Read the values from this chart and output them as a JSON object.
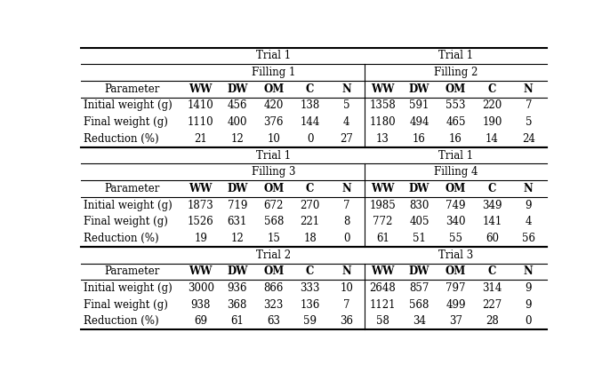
{
  "sections": [
    {
      "trial_left": "Trial 1",
      "trial_right": "Trial 1",
      "filling_left": "Filling 1",
      "filling_right": "Filling 2",
      "has_filling": true,
      "rows": [
        {
          "param": "Parameter",
          "left": [
            "WW",
            "DW",
            "OM",
            "C",
            "N"
          ],
          "right": [
            "WW",
            "DW",
            "OM",
            "C",
            "N"
          ],
          "is_header": true
        },
        {
          "param": "Initial weight (g)",
          "left": [
            "1410",
            "456",
            "420",
            "138",
            "5"
          ],
          "right": [
            "1358",
            "591",
            "553",
            "220",
            "7"
          ]
        },
        {
          "param": "Final weight (g)",
          "left": [
            "1110",
            "400",
            "376",
            "144",
            "4"
          ],
          "right": [
            "1180",
            "494",
            "465",
            "190",
            "5"
          ]
        },
        {
          "param": "Reduction (%)",
          "left": [
            "21",
            "12",
            "10",
            "0",
            "27"
          ],
          "right": [
            "13",
            "16",
            "16",
            "14",
            "24"
          ]
        }
      ]
    },
    {
      "trial_left": "Trial 1",
      "trial_right": "Trial 1",
      "filling_left": "Filling 3",
      "filling_right": "Filling 4",
      "has_filling": true,
      "rows": [
        {
          "param": "Parameter",
          "left": [
            "WW",
            "DW",
            "OM",
            "C",
            "N"
          ],
          "right": [
            "WW",
            "DW",
            "OM",
            "C",
            "N"
          ],
          "is_header": true
        },
        {
          "param": "Initial weight (g)",
          "left": [
            "1873",
            "719",
            "672",
            "270",
            "7"
          ],
          "right": [
            "1985",
            "830",
            "749",
            "349",
            "9"
          ]
        },
        {
          "param": "Final weight (g)",
          "left": [
            "1526",
            "631",
            "568",
            "221",
            "8"
          ],
          "right": [
            "772",
            "405",
            "340",
            "141",
            "4"
          ]
        },
        {
          "param": "Reduction (%)",
          "left": [
            "19",
            "12",
            "15",
            "18",
            "0"
          ],
          "right": [
            "61",
            "51",
            "55",
            "60",
            "56"
          ]
        }
      ]
    },
    {
      "trial_left": "Trial 2",
      "trial_right": "Trial 3",
      "filling_left": null,
      "filling_right": null,
      "has_filling": false,
      "rows": [
        {
          "param": "Parameter",
          "left": [
            "WW",
            "DW",
            "OM",
            "C",
            "N"
          ],
          "right": [
            "WW",
            "DW",
            "OM",
            "C",
            "N"
          ],
          "is_header": true
        },
        {
          "param": "Initial weight (g)",
          "left": [
            "3000",
            "936",
            "866",
            "333",
            "10"
          ],
          "right": [
            "2648",
            "857",
            "797",
            "314",
            "9"
          ]
        },
        {
          "param": "Final weight (g)",
          "left": [
            "938",
            "368",
            "323",
            "136",
            "7"
          ],
          "right": [
            "1121",
            "568",
            "499",
            "227",
            "9"
          ]
        },
        {
          "param": "Reduction (%)",
          "left": [
            "69",
            "61",
            "63",
            "59",
            "36"
          ],
          "right": [
            "58",
            "34",
            "37",
            "28",
            "0"
          ]
        }
      ]
    }
  ],
  "bg_color": "#ffffff",
  "text_color": "#000000",
  "fontsize": 8.5,
  "font_family": "DejaVu Serif"
}
